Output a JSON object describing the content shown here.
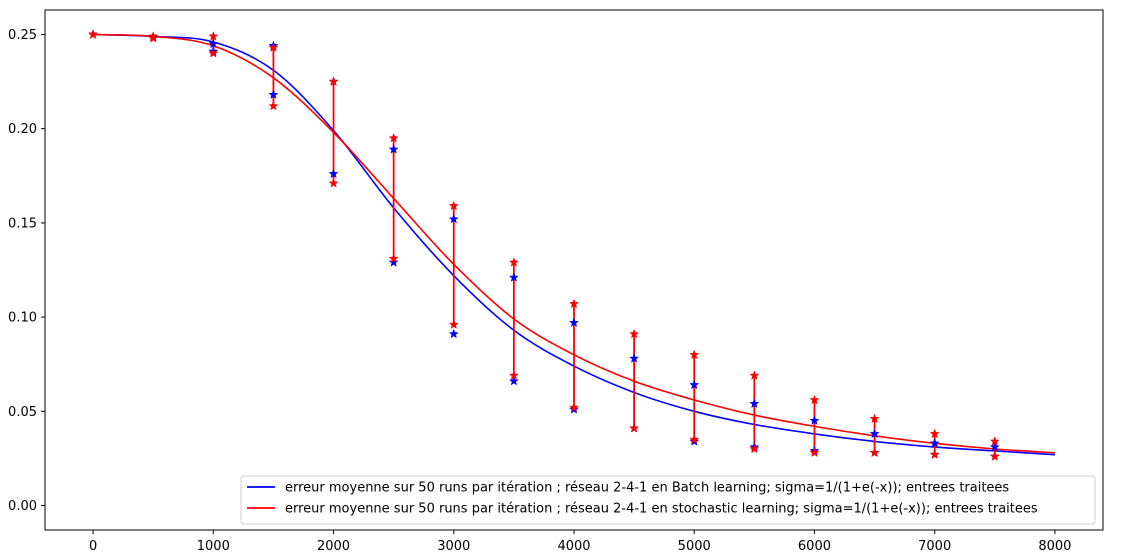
{
  "chart_data": {
    "type": "line",
    "title": "",
    "xlabel": "",
    "ylabel": "",
    "xlim": [
      -400,
      8400
    ],
    "ylim": [
      -0.013,
      0.263
    ],
    "x_ticks": [
      0,
      1000,
      2000,
      3000,
      4000,
      5000,
      6000,
      7000,
      8000
    ],
    "x_tick_labels": [
      "0",
      "1000",
      "2000",
      "3000",
      "4000",
      "5000",
      "6000",
      "7000",
      "8000"
    ],
    "y_ticks": [
      0.0,
      0.05,
      0.1,
      0.15,
      0.2,
      0.25
    ],
    "y_tick_labels": [
      "0.00",
      "0.05",
      "0.10",
      "0.15",
      "0.20",
      "0.25"
    ],
    "grid": false,
    "legend_position": "lower-right",
    "series": [
      {
        "name": "erreur moyenne sur 50 runs par itération ; réseau 2-4-1 en Batch learning; sigma=1/(1+e(-x)); entrees traitees",
        "color": "#0000ff",
        "x": [
          0,
          500,
          1000,
          1500,
          2000,
          2500,
          3000,
          3500,
          4000,
          4500,
          5000,
          5500,
          6000,
          6500,
          7000,
          7500,
          8000
        ],
        "values": [
          0.25,
          0.249,
          0.246,
          0.231,
          0.199,
          0.158,
          0.122,
          0.093,
          0.074,
          0.06,
          0.05,
          0.043,
          0.038,
          0.034,
          0.031,
          0.029,
          0.027
        ],
        "markers": {
          "x": [
            0,
            500,
            1000,
            1500,
            2000,
            2500,
            3000,
            3500,
            4000,
            4500,
            5000,
            5500,
            6000,
            6500,
            7000,
            7500
          ],
          "upper": [
            0.25,
            0.2485,
            0.245,
            0.244,
            0.225,
            0.189,
            0.152,
            0.121,
            0.097,
            0.078,
            0.064,
            0.054,
            0.045,
            0.038,
            0.033,
            0.031
          ],
          "lower": [
            0.25,
            0.2485,
            0.241,
            0.218,
            0.176,
            0.129,
            0.091,
            0.066,
            0.051,
            0.041,
            0.034,
            0.031,
            0.029,
            0.028,
            0.027,
            0.026
          ]
        }
      },
      {
        "name": "erreur moyenne sur 50 runs par itération ; réseau 2-4-1 en stochastic learning; sigma=1/(1+e(-x)); entrees traitees",
        "color": "#ff0000",
        "x": [
          0,
          500,
          1000,
          1500,
          2000,
          2500,
          3000,
          3500,
          4000,
          4500,
          5000,
          5500,
          6000,
          6500,
          7000,
          7500,
          8000
        ],
        "values": [
          0.25,
          0.249,
          0.244,
          0.227,
          0.198,
          0.163,
          0.128,
          0.099,
          0.08,
          0.066,
          0.056,
          0.048,
          0.042,
          0.037,
          0.033,
          0.03,
          0.028
        ],
        "errorbars": {
          "x": [
            0,
            500,
            1000,
            1500,
            2000,
            2500,
            3000,
            3500,
            4000,
            4500,
            5000,
            5500,
            6000,
            6500,
            7000,
            7500
          ],
          "upper": [
            0.25,
            0.249,
            0.249,
            0.243,
            0.225,
            0.195,
            0.159,
            0.129,
            0.107,
            0.091,
            0.08,
            0.069,
            0.056,
            0.046,
            0.038,
            0.034
          ],
          "lower": [
            0.25,
            0.248,
            0.24,
            0.212,
            0.171,
            0.131,
            0.096,
            0.069,
            0.052,
            0.041,
            0.035,
            0.03,
            0.028,
            0.028,
            0.027,
            0.026
          ]
        }
      }
    ]
  }
}
